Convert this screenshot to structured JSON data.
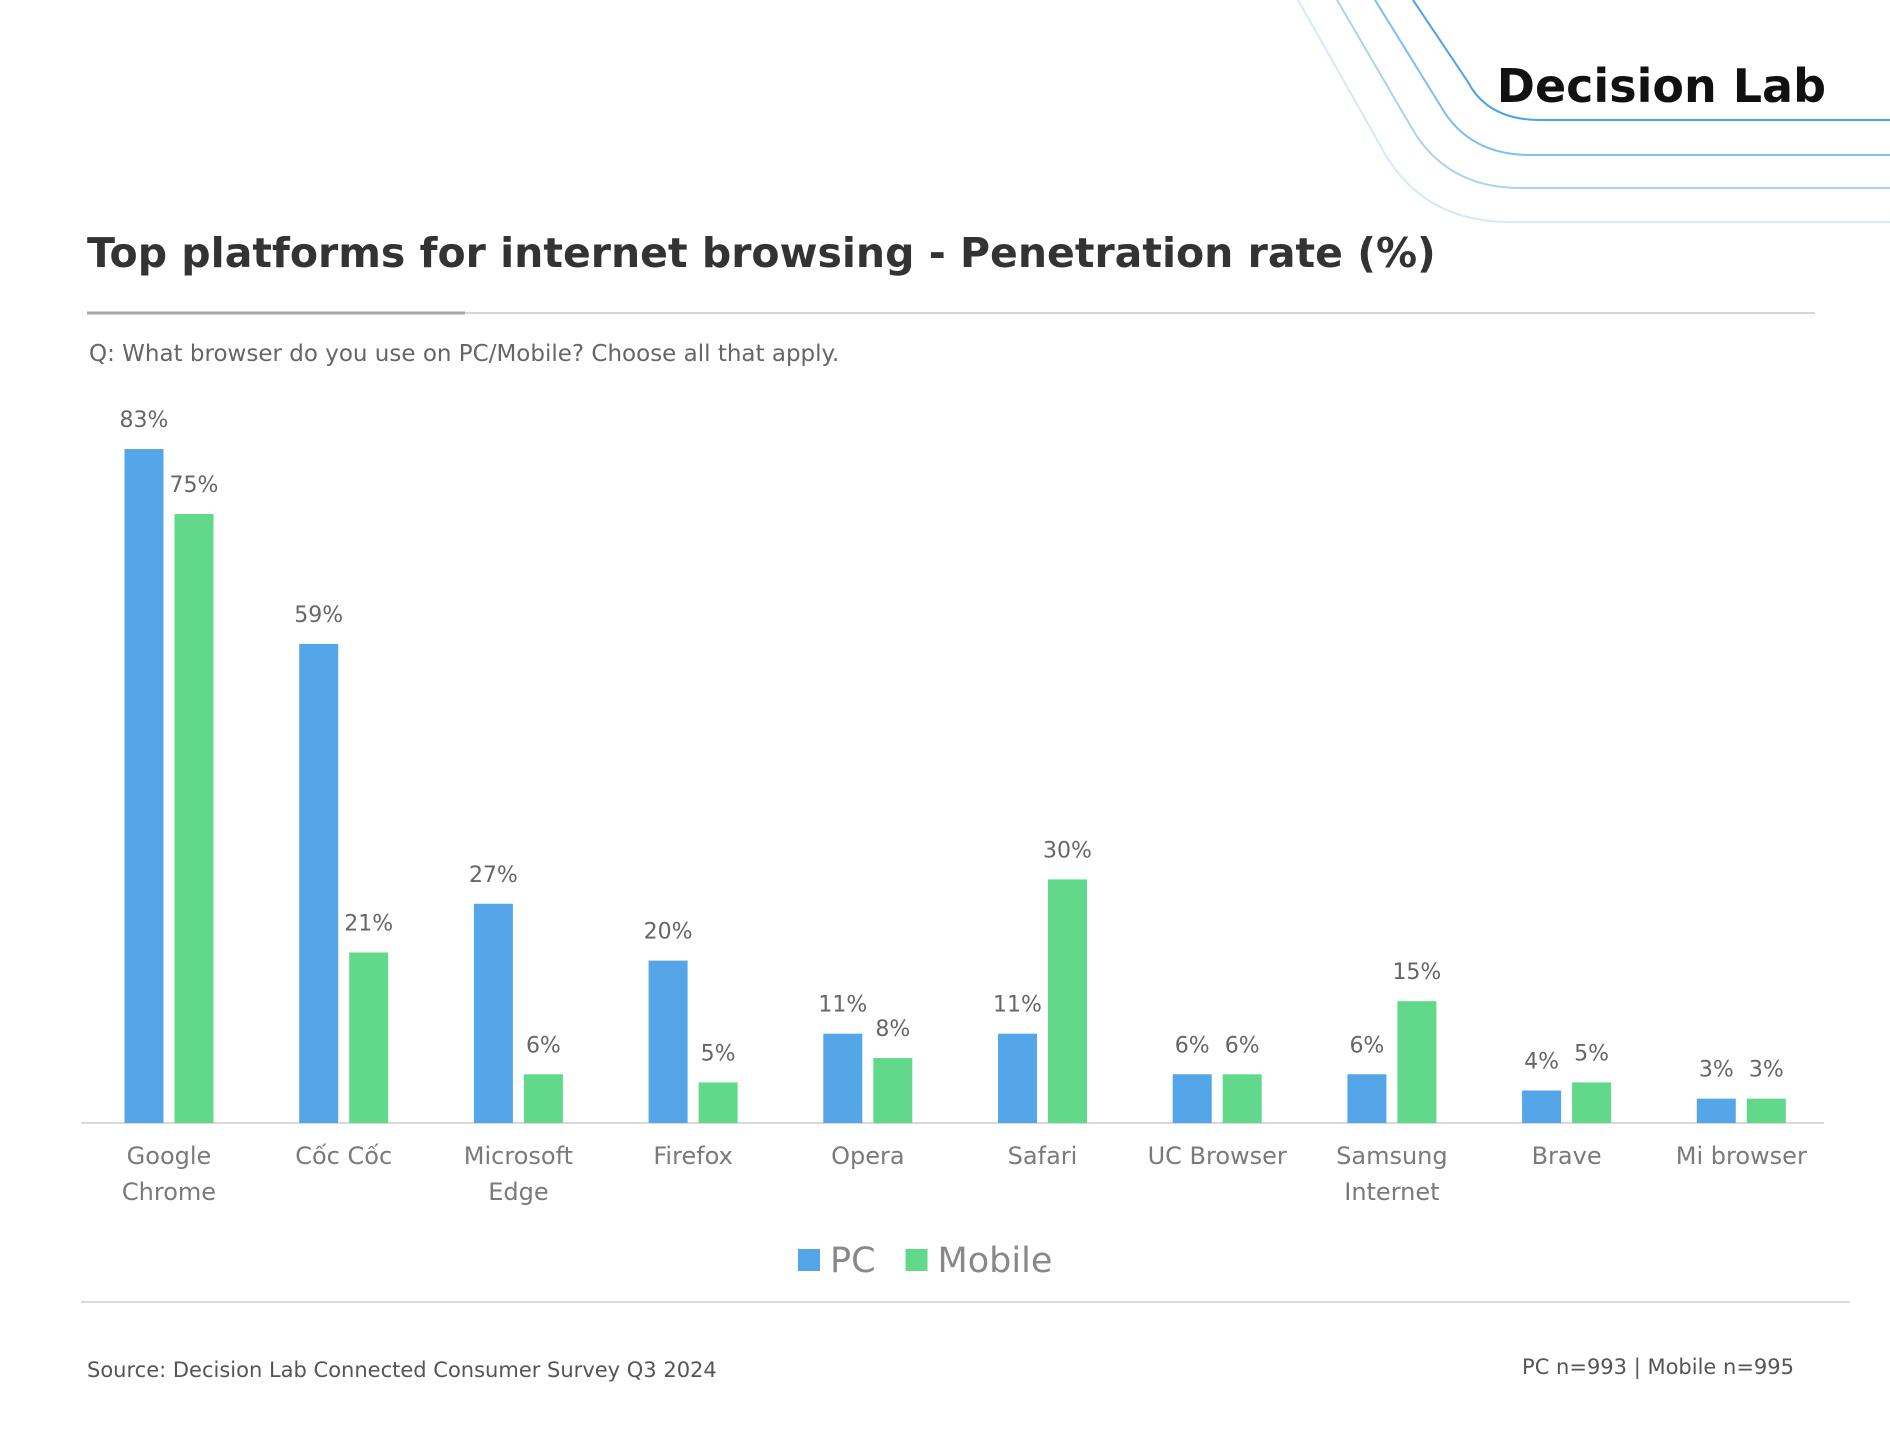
{
  "brand": "Decision Lab",
  "chart_data": {
    "type": "bar",
    "title": "Top platforms for internet browsing - Penetration rate (%)",
    "subtitle": "Q: What browser do you use on PC/Mobile? Choose all that apply.",
    "categories": [
      "Google\nChrome",
      "Cốc Cốc",
      "Microsoft\nEdge",
      "Firefox",
      "Opera",
      "Safari",
      "UC Browser",
      "Samsung\nInternet",
      "Brave",
      "Mi browser"
    ],
    "series": [
      {
        "name": "PC",
        "color": "#55a6e8",
        "values": [
          83,
          59,
          27,
          20,
          11,
          11,
          6,
          6,
          4,
          3
        ],
        "value_labels": [
          "83%",
          "59%",
          "27%",
          "20%",
          "11%",
          "11%",
          "6%",
          "6%",
          "4%",
          "3%"
        ]
      },
      {
        "name": "Mobile",
        "color": "#62d98a",
        "values": [
          75,
          21,
          6,
          5,
          8,
          30,
          6,
          15,
          5,
          3
        ],
        "value_labels": [
          "75%",
          "21%",
          "6%",
          "5%",
          "8%",
          "30%",
          "6%",
          "15%",
          "5%",
          "3%"
        ]
      }
    ],
    "ylim": [
      0,
      100
    ],
    "source": "Source: Decision Lab Connected Consumer Survey Q3 2024",
    "sample_note": "PC n=993 | Mobile n=995"
  }
}
